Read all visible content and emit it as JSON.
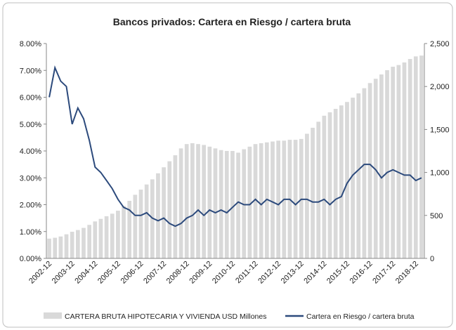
{
  "chart_data": {
    "type": "bar_line",
    "title": "Bancos privados: Cartera en Riesgo / cartera bruta",
    "categories": [
      "2002-12",
      null,
      null,
      null,
      "2003-12",
      null,
      null,
      null,
      "2004-12",
      null,
      null,
      null,
      "2005-12",
      null,
      null,
      null,
      "2006-12",
      null,
      null,
      null,
      "2007-12",
      null,
      null,
      null,
      "2008-12",
      null,
      null,
      null,
      "2009-12",
      null,
      null,
      null,
      "2010-12",
      null,
      null,
      null,
      "2011-12",
      null,
      null,
      null,
      "2012-12",
      null,
      null,
      null,
      "2013-12",
      null,
      null,
      null,
      "2014-12",
      null,
      null,
      null,
      "2015-12",
      null,
      null,
      null,
      "2016-12",
      null,
      null,
      null,
      "2017-12",
      null,
      null,
      null,
      "2018-12",
      null
    ],
    "series": [
      {
        "name": "CARTERA BRUTA HIPOTECARIA Y VIVIENDA USD Millones",
        "type": "bar",
        "axis": "y2",
        "color": "#d9d9d9",
        "values": [
          230,
          240,
          255,
          280,
          310,
          330,
          355,
          390,
          430,
          460,
          490,
          520,
          555,
          610,
          670,
          740,
          800,
          860,
          920,
          990,
          1060,
          1130,
          1200,
          1280,
          1330,
          1340,
          1330,
          1320,
          1300,
          1280,
          1260,
          1250,
          1250,
          1230,
          1270,
          1300,
          1330,
          1340,
          1350,
          1360,
          1370,
          1370,
          1380,
          1380,
          1390,
          1450,
          1520,
          1590,
          1660,
          1700,
          1740,
          1780,
          1820,
          1870,
          1920,
          1980,
          2040,
          2090,
          2140,
          2190,
          2230,
          2250,
          2280,
          2320,
          2350,
          2360
        ]
      },
      {
        "name": "Cartera en Riesgo / cartera bruta",
        "type": "line",
        "axis": "y",
        "color": "#2c4a7c",
        "values": [
          6.0,
          7.1,
          6.6,
          6.4,
          5.0,
          5.6,
          5.2,
          4.4,
          3.4,
          3.2,
          2.9,
          2.6,
          2.2,
          1.9,
          1.8,
          1.6,
          1.6,
          1.7,
          1.5,
          1.4,
          1.5,
          1.3,
          1.2,
          1.3,
          1.5,
          1.6,
          1.8,
          1.6,
          1.8,
          1.7,
          1.8,
          1.7,
          1.9,
          2.1,
          2.0,
          2.0,
          2.2,
          2.0,
          2.2,
          2.1,
          2.0,
          2.2,
          2.2,
          2.0,
          2.2,
          2.2,
          2.1,
          2.1,
          2.2,
          2.0,
          2.2,
          2.3,
          2.8,
          3.1,
          3.3,
          3.5,
          3.5,
          3.3,
          3.0,
          3.2,
          3.3,
          3.2,
          3.1,
          3.1,
          2.9,
          3.0
        ]
      }
    ],
    "ylim": [
      0,
      8
    ],
    "yticks": [
      {
        "value": 0,
        "label": "0.00%"
      },
      {
        "value": 1,
        "label": "1.00%"
      },
      {
        "value": 2,
        "label": "2.00%"
      },
      {
        "value": 3,
        "label": "3.00%"
      },
      {
        "value": 4,
        "label": "4.00%"
      },
      {
        "value": 5,
        "label": "5.00%"
      },
      {
        "value": 6,
        "label": "6.00%"
      },
      {
        "value": 7,
        "label": "7.00%"
      },
      {
        "value": 8,
        "label": "8.00%"
      }
    ],
    "y2lim": [
      0,
      2500
    ],
    "y2ticks": [
      0,
      500,
      {
        "value": 1000,
        "label": "1,000"
      },
      {
        "value": 1500,
        "label": "1,500"
      },
      {
        "value": 2000,
        "label": "2,000"
      },
      {
        "value": 2500,
        "label": "2,500"
      }
    ],
    "grid": false,
    "legend": "bottom"
  }
}
